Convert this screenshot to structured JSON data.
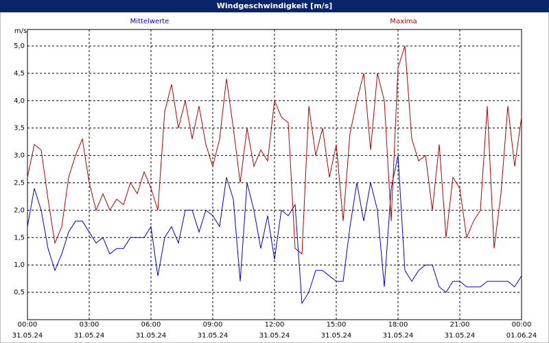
{
  "chart_data": {
    "type": "line",
    "title": "Windgeschwindigkeit [m/s]",
    "y_label": "m/s",
    "x": [
      0,
      20,
      40,
      60,
      80,
      100,
      120,
      140,
      160,
      180,
      200,
      220,
      240,
      260,
      280,
      300,
      320,
      340,
      360,
      380,
      400,
      420,
      440,
      460,
      480,
      500,
      520,
      540,
      560,
      580,
      600,
      620,
      640,
      660,
      680,
      700,
      720,
      740,
      760,
      780,
      800,
      820,
      840,
      860,
      880,
      900,
      920,
      940,
      960,
      980,
      1000,
      1020,
      1040,
      1060,
      1080,
      1100,
      1120,
      1140,
      1160,
      1180,
      1200,
      1220,
      1240,
      1260,
      1280,
      1300,
      1320,
      1340,
      1360,
      1380,
      1400,
      1420,
      1440
    ],
    "series": [
      {
        "name": "Mittelwerte",
        "color": "#0000cc",
        "values": [
          1.7,
          2.4,
          2.0,
          1.3,
          0.9,
          1.2,
          1.6,
          1.8,
          1.8,
          1.6,
          1.4,
          1.5,
          1.2,
          1.3,
          1.3,
          1.5,
          1.5,
          1.5,
          1.7,
          0.8,
          1.5,
          1.7,
          1.4,
          2.0,
          2.0,
          1.6,
          2.0,
          1.9,
          1.7,
          2.6,
          2.2,
          0.7,
          2.5,
          2.0,
          1.3,
          1.9,
          1.1,
          2.0,
          1.9,
          2.1,
          0.3,
          0.5,
          0.9,
          0.9,
          0.8,
          0.7,
          0.7,
          1.7,
          2.5,
          1.8,
          2.5,
          2.0,
          0.6,
          2.4,
          3.0,
          0.9,
          0.7,
          0.9,
          1.0,
          1.0,
          0.6,
          0.5,
          0.7,
          0.7,
          0.6,
          0.6,
          0.6,
          0.7,
          0.7,
          0.7,
          0.7,
          0.6,
          0.8
        ]
      },
      {
        "name": "Maxima",
        "color": "#b00000",
        "values": [
          2.6,
          3.2,
          3.1,
          2.2,
          1.4,
          1.7,
          2.6,
          3.0,
          3.3,
          2.5,
          2.0,
          2.3,
          2.0,
          2.2,
          2.1,
          2.5,
          2.3,
          2.7,
          2.4,
          2.0,
          3.8,
          4.3,
          3.5,
          4.0,
          3.3,
          3.9,
          3.2,
          2.8,
          3.3,
          4.4,
          3.5,
          2.5,
          3.5,
          2.8,
          3.1,
          2.9,
          4.0,
          3.7,
          3.6,
          1.3,
          1.2,
          3.9,
          3.0,
          3.5,
          2.6,
          3.2,
          1.8,
          3.4,
          4.0,
          4.5,
          3.1,
          4.5,
          4.0,
          1.8,
          4.6,
          5.0,
          3.3,
          2.9,
          3.0,
          2.0,
          3.2,
          1.5,
          2.6,
          2.4,
          1.5,
          1.8,
          2.0,
          3.9,
          1.3,
          2.3,
          3.9,
          2.8,
          3.7
        ]
      }
    ],
    "xlim": [
      0,
      1440
    ],
    "xticks": [
      {
        "value": 0,
        "label": "00:00",
        "date": "31.05.24"
      },
      {
        "value": 180,
        "label": "03:00",
        "date": "31.05.24"
      },
      {
        "value": 360,
        "label": "06:00",
        "date": "31.05.24"
      },
      {
        "value": 540,
        "label": "09:00",
        "date": "31.05.24"
      },
      {
        "value": 720,
        "label": "12:00",
        "date": "31.05.24"
      },
      {
        "value": 900,
        "label": "15:00",
        "date": "31.05.24"
      },
      {
        "value": 1080,
        "label": "18:00",
        "date": "31.05.24"
      },
      {
        "value": 1260,
        "label": "21:00",
        "date": "31.05.24"
      },
      {
        "value": 1440,
        "label": "00:00",
        "date": "01.06.24"
      }
    ],
    "ylim": [
      0,
      5.3
    ],
    "yticks": [
      {
        "value": 0.5,
        "label": "0,5"
      },
      {
        "value": 1.0,
        "label": "1,0"
      },
      {
        "value": 1.5,
        "label": "1,5"
      },
      {
        "value": 2.0,
        "label": "2,0"
      },
      {
        "value": 2.5,
        "label": "2,5"
      },
      {
        "value": 3.0,
        "label": "3,0"
      },
      {
        "value": 3.5,
        "label": "3,5"
      },
      {
        "value": 4.0,
        "label": "4,0"
      },
      {
        "value": 4.5,
        "label": "4,5"
      },
      {
        "value": 5.0,
        "label": "5,0"
      }
    ],
    "grid": true
  }
}
